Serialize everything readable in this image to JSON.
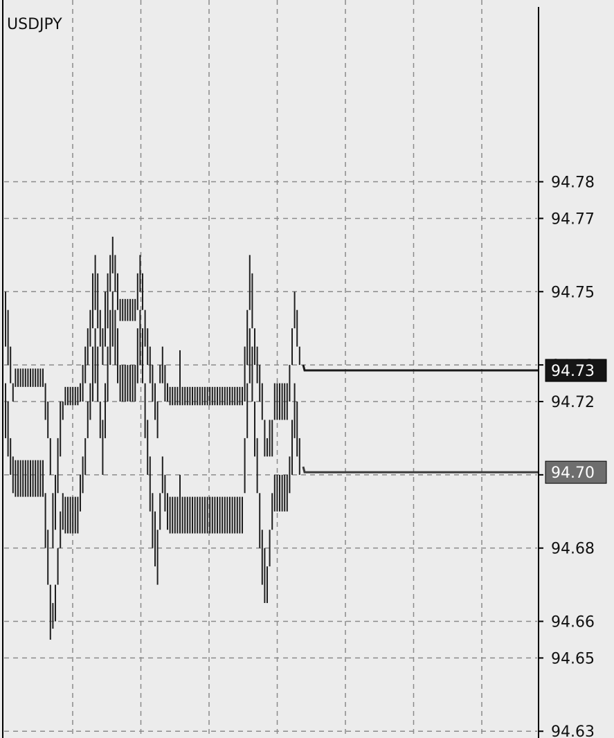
{
  "chart_data": {
    "type": "bar",
    "title": "USDJPY",
    "symbol": "USDJPY",
    "ylim": [
      94.63,
      94.8
    ],
    "y_ticks": [
      {
        "value": 94.78,
        "label": "94.78"
      },
      {
        "value": 94.77,
        "label": "94.77"
      },
      {
        "value": 94.75,
        "label": "94.75"
      },
      {
        "value": 94.73,
        "label": "94.73"
      },
      {
        "value": 94.72,
        "label": "94.72"
      },
      {
        "value": 94.7,
        "label": "94.70"
      },
      {
        "value": 94.68,
        "label": "94.68"
      },
      {
        "value": 94.66,
        "label": "94.66"
      },
      {
        "value": 94.65,
        "label": "94.65"
      },
      {
        "value": 94.63,
        "label": "94.63"
      }
    ],
    "grid": true,
    "series": [
      {
        "role": "ask",
        "values": [
          [
            94.75,
            94.735
          ],
          [
            94.745,
            94.73
          ],
          [
            94.735,
            94.725
          ],
          [
            94.725,
            94.72
          ],
          [
            94.729,
            94.724
          ],
          [
            94.729,
            94.724
          ],
          [
            94.729,
            94.724
          ],
          [
            94.729,
            94.724
          ],
          [
            94.729,
            94.724
          ],
          [
            94.729,
            94.724
          ],
          [
            94.729,
            94.724
          ],
          [
            94.729,
            94.724
          ],
          [
            94.729,
            94.724
          ],
          [
            94.729,
            94.724
          ],
          [
            94.729,
            94.724
          ],
          [
            94.729,
            94.724
          ],
          [
            94.725,
            94.715
          ],
          [
            94.72,
            94.71
          ],
          [
            94.71,
            94.7
          ],
          [
            94.695,
            94.68
          ],
          [
            94.7,
            94.685
          ],
          [
            94.71,
            94.695
          ],
          [
            94.72,
            94.705
          ],
          [
            94.72,
            94.715
          ],
          [
            94.724,
            94.719
          ],
          [
            94.724,
            94.719
          ],
          [
            94.724,
            94.719
          ],
          [
            94.724,
            94.719
          ],
          [
            94.724,
            94.719
          ],
          [
            94.724,
            94.719
          ],
          [
            94.725,
            94.72
          ],
          [
            94.73,
            94.72
          ],
          [
            94.735,
            94.725
          ],
          [
            94.74,
            94.73
          ],
          [
            94.745,
            94.735
          ],
          [
            94.755,
            94.74
          ],
          [
            94.76,
            94.745
          ],
          [
            94.755,
            94.74
          ],
          [
            94.745,
            94.735
          ],
          [
            94.74,
            94.73
          ],
          [
            94.75,
            94.735
          ],
          [
            94.755,
            94.74
          ],
          [
            94.76,
            94.75
          ],
          [
            94.765,
            94.755
          ],
          [
            94.76,
            94.75
          ],
          [
            94.755,
            94.745
          ],
          [
            94.748,
            94.742
          ],
          [
            94.748,
            94.742
          ],
          [
            94.748,
            94.742
          ],
          [
            94.748,
            94.742
          ],
          [
            94.748,
            94.742
          ],
          [
            94.748,
            94.742
          ],
          [
            94.748,
            94.742
          ],
          [
            94.755,
            94.745
          ],
          [
            94.76,
            94.75
          ],
          [
            94.755,
            94.745
          ],
          [
            94.745,
            94.735
          ],
          [
            94.74,
            94.73
          ],
          [
            94.735,
            94.725
          ],
          [
            94.73,
            94.72
          ],
          [
            94.725,
            94.715
          ],
          [
            94.72,
            94.71
          ],
          [
            94.73,
            94.725
          ],
          [
            94.735,
            94.725
          ],
          [
            94.73,
            94.72
          ],
          [
            94.725,
            94.72
          ],
          [
            94.724,
            94.719
          ],
          [
            94.724,
            94.719
          ],
          [
            94.724,
            94.719
          ],
          [
            94.724,
            94.719
          ],
          [
            94.734,
            94.719
          ],
          [
            94.724,
            94.719
          ],
          [
            94.724,
            94.719
          ],
          [
            94.724,
            94.719
          ],
          [
            94.724,
            94.719
          ],
          [
            94.724,
            94.719
          ],
          [
            94.724,
            94.719
          ],
          [
            94.724,
            94.719
          ],
          [
            94.724,
            94.719
          ],
          [
            94.724,
            94.719
          ],
          [
            94.724,
            94.719
          ],
          [
            94.724,
            94.719
          ],
          [
            94.724,
            94.719
          ],
          [
            94.724,
            94.719
          ],
          [
            94.724,
            94.719
          ],
          [
            94.724,
            94.719
          ],
          [
            94.724,
            94.719
          ],
          [
            94.724,
            94.719
          ],
          [
            94.724,
            94.719
          ],
          [
            94.724,
            94.719
          ],
          [
            94.724,
            94.719
          ],
          [
            94.724,
            94.719
          ],
          [
            94.724,
            94.719
          ],
          [
            94.724,
            94.719
          ],
          [
            94.724,
            94.719
          ],
          [
            94.724,
            94.719
          ],
          [
            94.735,
            94.72
          ],
          [
            94.745,
            94.73
          ],
          [
            94.76,
            94.745
          ],
          [
            94.755,
            94.74
          ],
          [
            94.74,
            94.73
          ],
          [
            94.735,
            94.725
          ],
          [
            94.73,
            94.72
          ],
          [
            94.725,
            94.715
          ],
          [
            94.715,
            94.705
          ],
          [
            94.71,
            94.705
          ],
          [
            94.715,
            94.705
          ],
          [
            94.715,
            94.705
          ],
          [
            94.725,
            94.715
          ],
          [
            94.725,
            94.715
          ],
          [
            94.725,
            94.715
          ],
          [
            94.725,
            94.715
          ],
          [
            94.725,
            94.715
          ],
          [
            94.725,
            94.715
          ],
          [
            94.73,
            94.72
          ],
          [
            94.74,
            94.73
          ],
          [
            94.75,
            94.74
          ],
          [
            94.745,
            94.735
          ],
          [
            94.735,
            94.73
          ]
        ]
      },
      {
        "role": "bid",
        "values": [
          [
            94.725,
            94.71
          ],
          [
            94.72,
            94.705
          ],
          [
            94.71,
            94.7
          ],
          [
            94.705,
            94.695
          ],
          [
            94.704,
            94.694
          ],
          [
            94.704,
            94.694
          ],
          [
            94.704,
            94.694
          ],
          [
            94.704,
            94.694
          ],
          [
            94.704,
            94.694
          ],
          [
            94.704,
            94.694
          ],
          [
            94.704,
            94.694
          ],
          [
            94.704,
            94.694
          ],
          [
            94.704,
            94.694
          ],
          [
            94.704,
            94.694
          ],
          [
            94.704,
            94.694
          ],
          [
            94.704,
            94.694
          ],
          [
            94.695,
            94.68
          ],
          [
            94.685,
            94.67
          ],
          [
            94.67,
            94.655
          ],
          [
            94.665,
            94.658
          ],
          [
            94.67,
            94.66
          ],
          [
            94.68,
            94.67
          ],
          [
            94.69,
            94.68
          ],
          [
            94.695,
            94.685
          ],
          [
            94.694,
            94.684
          ],
          [
            94.694,
            94.684
          ],
          [
            94.694,
            94.684
          ],
          [
            94.694,
            94.684
          ],
          [
            94.694,
            94.684
          ],
          [
            94.694,
            94.684
          ],
          [
            94.7,
            94.69
          ],
          [
            94.705,
            94.695
          ],
          [
            94.71,
            94.7
          ],
          [
            94.72,
            94.71
          ],
          [
            94.725,
            94.715
          ],
          [
            94.735,
            94.72
          ],
          [
            94.74,
            94.725
          ],
          [
            94.735,
            94.72
          ],
          [
            94.72,
            94.71
          ],
          [
            94.715,
            94.7
          ],
          [
            94.725,
            94.71
          ],
          [
            94.735,
            94.72
          ],
          [
            94.745,
            94.73
          ],
          [
            94.75,
            94.735
          ],
          [
            94.745,
            94.73
          ],
          [
            94.74,
            94.725
          ],
          [
            94.73,
            94.72
          ],
          [
            94.73,
            94.72
          ],
          [
            94.73,
            94.72
          ],
          [
            94.73,
            94.72
          ],
          [
            94.73,
            94.72
          ],
          [
            94.73,
            94.72
          ],
          [
            94.73,
            94.72
          ],
          [
            94.74,
            94.725
          ],
          [
            94.745,
            94.73
          ],
          [
            94.74,
            94.725
          ],
          [
            94.725,
            94.71
          ],
          [
            94.715,
            94.7
          ],
          [
            94.705,
            94.69
          ],
          [
            94.695,
            94.68
          ],
          [
            94.69,
            94.675
          ],
          [
            94.685,
            94.67
          ],
          [
            94.695,
            94.685
          ],
          [
            94.705,
            94.695
          ],
          [
            94.7,
            94.69
          ],
          [
            94.695,
            94.685
          ],
          [
            94.694,
            94.684
          ],
          [
            94.694,
            94.684
          ],
          [
            94.694,
            94.684
          ],
          [
            94.694,
            94.684
          ],
          [
            94.7,
            94.684
          ],
          [
            94.694,
            94.684
          ],
          [
            94.694,
            94.684
          ],
          [
            94.694,
            94.684
          ],
          [
            94.694,
            94.684
          ],
          [
            94.694,
            94.684
          ],
          [
            94.694,
            94.684
          ],
          [
            94.694,
            94.684
          ],
          [
            94.694,
            94.684
          ],
          [
            94.694,
            94.684
          ],
          [
            94.694,
            94.684
          ],
          [
            94.694,
            94.684
          ],
          [
            94.694,
            94.684
          ],
          [
            94.694,
            94.684
          ],
          [
            94.694,
            94.684
          ],
          [
            94.694,
            94.684
          ],
          [
            94.694,
            94.684
          ],
          [
            94.694,
            94.684
          ],
          [
            94.694,
            94.684
          ],
          [
            94.694,
            94.684
          ],
          [
            94.694,
            94.684
          ],
          [
            94.694,
            94.684
          ],
          [
            94.694,
            94.684
          ],
          [
            94.694,
            94.684
          ],
          [
            94.694,
            94.684
          ],
          [
            94.694,
            94.684
          ],
          [
            94.71,
            94.695
          ],
          [
            94.725,
            94.71
          ],
          [
            94.74,
            94.725
          ],
          [
            94.735,
            94.72
          ],
          [
            94.72,
            94.705
          ],
          [
            94.71,
            94.695
          ],
          [
            94.695,
            94.68
          ],
          [
            94.685,
            94.67
          ],
          [
            94.68,
            94.665
          ],
          [
            94.675,
            94.665
          ],
          [
            94.685,
            94.675
          ],
          [
            94.695,
            94.685
          ],
          [
            94.7,
            94.69
          ],
          [
            94.7,
            94.69
          ],
          [
            94.7,
            94.69
          ],
          [
            94.7,
            94.69
          ],
          [
            94.7,
            94.69
          ],
          [
            94.7,
            94.69
          ],
          [
            94.705,
            94.695
          ],
          [
            94.715,
            94.7
          ],
          [
            94.725,
            94.71
          ],
          [
            94.72,
            94.705
          ],
          [
            94.71,
            94.7
          ]
        ]
      }
    ],
    "current_prices": [
      {
        "label": "94.73",
        "value": 94.7285,
        "line_color": "#1a1a1a",
        "tag_color": "#151515",
        "text_color": "#ffffff"
      },
      {
        "label": "94.70",
        "value": 94.7007,
        "line_color": "#3a3a3a",
        "tag_color": "#6e6e6e",
        "text_color": "#ffffff"
      }
    ],
    "colors": {
      "background": "#ececec",
      "grid": "#8a8a8a",
      "bars": "#1e1e1e",
      "axis": "#000000"
    }
  }
}
